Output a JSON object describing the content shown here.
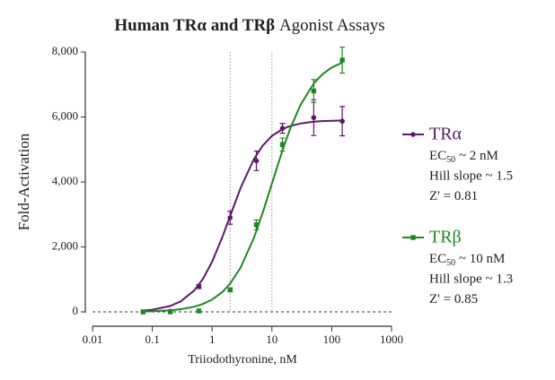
{
  "chart_data": {
    "type": "line",
    "title": [
      "Human TRα and TRβ",
      "Agonist Assays"
    ],
    "x_label": "Triiodothyronine, nM",
    "y_label": "Fold-Activation",
    "x_scale": "log",
    "xlim": [
      0.01,
      1000
    ],
    "xticks": [
      0.01,
      0.1,
      1,
      10,
      100,
      1000
    ],
    "ylim": [
      0,
      8000
    ],
    "yticks": [
      0,
      {
        "value": 2000,
        "label": "2,000"
      },
      {
        "value": 4000,
        "label": "4,000"
      },
      {
        "value": 6000,
        "label": "6,000"
      },
      {
        "value": 8000,
        "label": "8,000"
      }
    ],
    "ec50_lines": [
      2,
      10
    ],
    "x": [
      0.07,
      0.2,
      0.6,
      2,
      5.5,
      15,
      50,
      150
    ],
    "fit_x": [
      0.07,
      0.1,
      0.2,
      0.3,
      0.5,
      0.7,
      1,
      1.5,
      2,
      3,
      5,
      7,
      10,
      15,
      20,
      30,
      50,
      70,
      100,
      150
    ],
    "series": [
      {
        "name": "TRα",
        "color": "#5e1a6b",
        "values": [
          0,
          20,
          780,
          2900,
          4650,
          5650,
          5980,
          5870
        ],
        "errors": [
          null,
          null,
          60,
          200,
          300,
          150,
          550,
          450
        ],
        "fit": [
          38,
          65,
          181,
          325,
          656,
          1012,
          1541,
          2323,
          2950,
          3821,
          4709,
          5118,
          5416,
          5626,
          5719,
          5800,
          5853,
          5872,
          5883,
          5891
        ],
        "notes": [
          [
            "EC",
            "50",
            " ~ 2 nM"
          ],
          [
            "Hill slope ~ 1.5"
          ],
          [
            "Z' = 0.81"
          ]
        ]
      },
      {
        "name": "TRβ",
        "color": "#1e8a1e",
        "values": [
          0,
          0,
          30,
          680,
          2680,
          5150,
          6800,
          7750
        ],
        "errors": [
          null,
          null,
          null,
          60,
          150,
          200,
          350,
          400
        ],
        "fit": [
          12,
          20,
          49,
          82,
          158,
          242,
          377,
          618,
          868,
          1367,
          2282,
          3050,
          3950,
          4968,
          5618,
          6371,
          7032,
          7317,
          7523,
          7673
        ],
        "notes": [
          [
            "EC",
            "50",
            " ~ 10 nM"
          ],
          [
            "Hill slope ~ 1.3"
          ],
          [
            "Z' = 0.85"
          ]
        ]
      }
    ]
  }
}
